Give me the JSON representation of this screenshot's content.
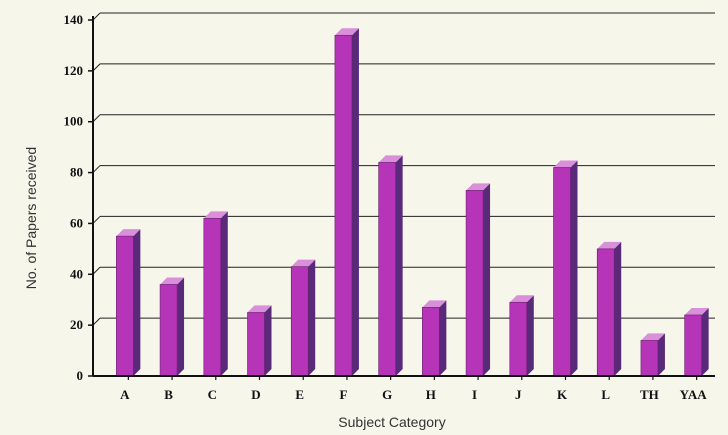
{
  "chart_data": {
    "type": "bar",
    "title": "",
    "xlabel": "Subject Category",
    "ylabel": "No. of Papers received",
    "ylim": [
      0,
      140
    ],
    "yticks": [
      0,
      20,
      40,
      60,
      80,
      100,
      120,
      140
    ],
    "grid": true,
    "categories": [
      "A",
      "B",
      "C",
      "D",
      "E",
      "F",
      "G",
      "H",
      "I",
      "J",
      "K",
      "L",
      "TH",
      "YAA"
    ],
    "values": [
      55,
      36,
      62,
      25,
      43,
      134,
      84,
      27,
      73,
      29,
      82,
      50,
      14,
      24
    ],
    "colors": {
      "bar_front": "#b534b8",
      "bar_side": "#5a2a7a",
      "bar_top": "#d98fd9",
      "background": "#f7f6ea",
      "grid": "#222222"
    }
  }
}
